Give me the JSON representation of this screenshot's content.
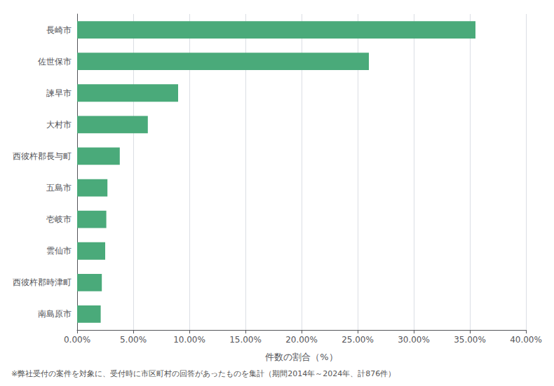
{
  "chart_data": {
    "type": "bar",
    "orientation": "horizontal",
    "categories": [
      "長崎市",
      "佐世保市",
      "諫早市",
      "大村市",
      "西彼杵郡長与町",
      "五島市",
      "壱岐市",
      "雲仙市",
      "西彼杵郡時津町",
      "南島原市"
    ],
    "values": [
      35.5,
      26.0,
      9.0,
      6.3,
      3.8,
      2.7,
      2.6,
      2.5,
      2.2,
      2.1
    ],
    "color": "#4aaa7a",
    "xlabel": "件数の割合（%）",
    "xlim": [
      0,
      40
    ],
    "xticks": [
      {
        "value": 0,
        "label": "0.00%"
      },
      {
        "value": 5,
        "label": "5.00%"
      },
      {
        "value": 10,
        "label": "10.00%"
      },
      {
        "value": 15,
        "label": "15.00%"
      },
      {
        "value": 20,
        "label": "20.00%"
      },
      {
        "value": 25,
        "label": "25.00%"
      },
      {
        "value": 30,
        "label": "30.00%"
      },
      {
        "value": 35,
        "label": "35.00%"
      },
      {
        "value": 40,
        "label": "40.00%"
      }
    ],
    "grid": true,
    "annotation": "※弊社受付の案件を対象に、受付時に市区町村の回答があったものを集計（期間2014年～2024年、計876件）"
  }
}
